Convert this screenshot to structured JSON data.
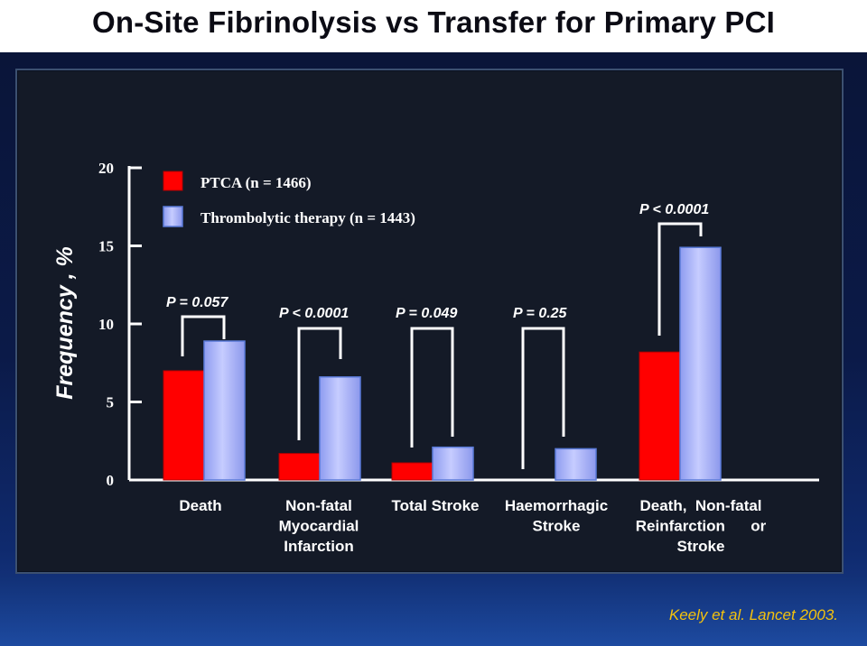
{
  "slide": {
    "title": "On-Site Fibrinolysis vs Transfer for Primary PCI",
    "citation": "Keely et al. Lancet 2003."
  },
  "colors": {
    "ptca": "#ff0000",
    "thrombolytic": "#aab4ff",
    "thrombolytic_edge": "#5a7ad8"
  },
  "chart_data": {
    "type": "bar",
    "ylabel": "Frequency , %",
    "ylim": [
      0,
      20
    ],
    "yticks": [
      0,
      5,
      10,
      15,
      20
    ],
    "legend_position": "top-left",
    "categories": [
      [
        "Death"
      ],
      [
        "Non-fatal",
        "Myocardial",
        "Infarction"
      ],
      [
        "Total Stroke"
      ],
      [
        "Haemorrhagic",
        "Stroke"
      ],
      [
        "Death,  Non-fatal",
        "Reinfarction      or",
        "Stroke"
      ]
    ],
    "series": [
      {
        "name": "PTCA (n = 1466)",
        "values": [
          7.0,
          1.7,
          1.1,
          0.0,
          8.2
        ]
      },
      {
        "name": "Thrombolytic therapy (n = 1443)",
        "values": [
          8.9,
          6.6,
          2.1,
          2.0,
          14.9
        ]
      }
    ],
    "p_values": [
      "P = 0.057",
      "P < 0.0001",
      "P = 0.049",
      "P = 0.25",
      "P < 0.0001"
    ]
  }
}
